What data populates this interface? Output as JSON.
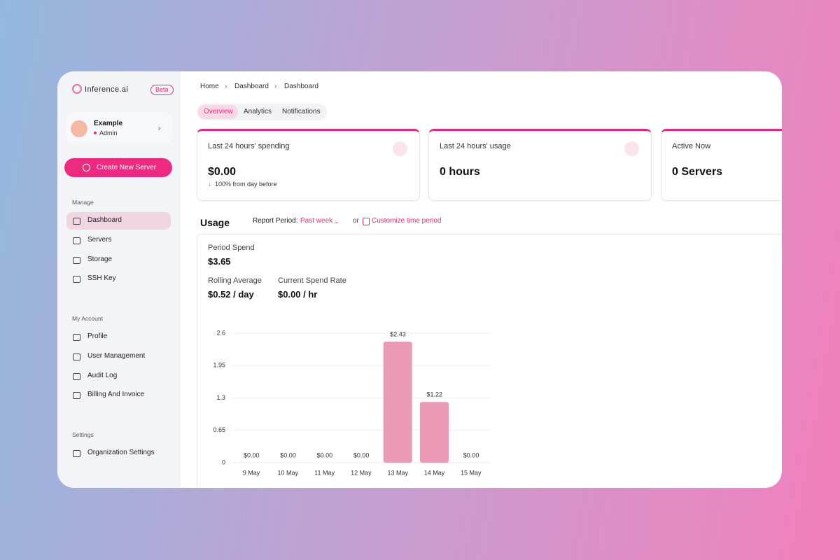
{
  "brand": {
    "name": "Inference.ai",
    "badge": "Beta"
  },
  "user": {
    "name": "Example",
    "role": "Admin"
  },
  "create_button": "Create New Server",
  "nav": [
    {
      "title": "Manage",
      "items": [
        "Dashboard",
        "Servers",
        "Storage",
        "SSH Key"
      ]
    },
    {
      "title": "My Account",
      "items": [
        "Profile",
        "User Management",
        "Audit Log",
        "Billing And Invoice"
      ]
    },
    {
      "title": "Settings",
      "items": [
        "Organization Settings"
      ]
    }
  ],
  "breadcrumb": [
    "Home",
    "Dashboard",
    "Dashboard"
  ],
  "tabs": [
    "Overview",
    "Analytics",
    "Notifications"
  ],
  "cards": [
    {
      "title": "Last 24 hours' spending",
      "value": "$0.00",
      "change": "100% from day before"
    },
    {
      "title": "Last 24 hours' usage",
      "value": "0 hours"
    },
    {
      "title": "Active Now",
      "value": "0 Servers"
    }
  ],
  "usage": {
    "title": "Usage",
    "report_period_label": "Report Period:",
    "period": "Past week",
    "or": "or",
    "customize": "Customize time period"
  },
  "stats": [
    {
      "label": "Period Spend",
      "value": "$3.65"
    },
    {
      "label": "Rolling Average",
      "value": "$0.52 / day"
    },
    {
      "label": "Current Spend Rate",
      "value": "$0.00 / hr"
    }
  ],
  "chart_data": {
    "type": "bar",
    "categories": [
      "9 May",
      "10 May",
      "11 May",
      "12 May",
      "13 May",
      "14 May",
      "15 May"
    ],
    "values": [
      0,
      0,
      0,
      0,
      2.43,
      1.22,
      0
    ],
    "value_labels": [
      "$0.00",
      "$0.00",
      "$0.00",
      "$0.00",
      "$2.43",
      "$1.22",
      "$0.00"
    ],
    "color": "#eb9ab6",
    "ylim": [
      0,
      2.6
    ],
    "yticks": [
      0,
      0.65,
      1.3,
      1.95,
      2.6
    ],
    "grid": true
  }
}
